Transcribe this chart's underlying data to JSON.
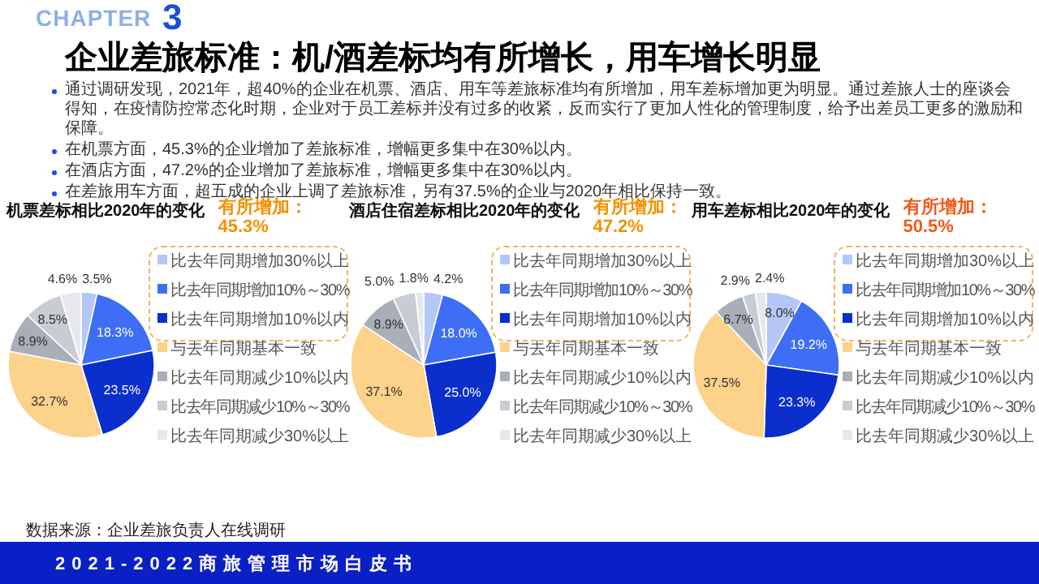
{
  "chart_data": [
    {
      "type": "other",
      "title": "企业差旅标准：机/酒差标均有所增长，用车增长明显",
      "annotations": [
        "CHAPTER",
        "3",
        "通过调研发现，2021年，超40%的企业在机票、酒店、用车等差旅标准均有所增加，用车差标增加更为明显。通过差旅人士的座谈会得知，在疫情防控常态化时期，企业对于员工差标并没有过多的收紧，反而实行了更加人性化的管理制度，给予出差员工更多的激励和保障。",
        "在机票方面，45.3%的企业增加了差旅标准，增幅更多集中在30%以内。",
        "在酒店方面，47.2%的企业增加了差旅标准，增幅更多集中在30%以内。",
        "在差旅用车方面，超五成的企业上调了差旅标准，另有37.5%的企业与2020年相比保持一致。",
        "数据来源：企业差旅负责人在线调研",
        "2021-2022商旅管理市场白皮书"
      ]
    },
    {
      "type": "pie",
      "title": "机票差标相比2020年的变化",
      "annotations": [
        "有所增加：",
        "45.3%"
      ],
      "categories": [
        "比去年同期增加30%以上",
        "比去年同期增加10%～30%",
        "比去年同期增加10%以内",
        "与去年同期基本一致",
        "比去年同期减少10%以内",
        "比去年同期减少10%～30%",
        "比去年同期减少30%以上"
      ],
      "values": [
        3.5,
        18.3,
        23.5,
        32.7,
        8.9,
        8.5,
        4.6
      ],
      "value_labels": [
        "3.5%",
        "18.3%",
        "23.5%",
        "32.7%",
        "8.9%",
        "8.5%",
        "4.6%"
      ],
      "colors": [
        "#b4c7f7",
        "#3d6ef5",
        "#0a2fcc",
        "#fdd28a",
        "#a9afb8",
        "#c8ccd3",
        "#e6e8ec"
      ],
      "legend": "right"
    },
    {
      "type": "pie",
      "title": "酒店住宿差标相比2020年的变化",
      "annotations": [
        "有所增加：",
        "47.2%"
      ],
      "categories": [
        "比去年同期增加30%以上",
        "比去年同期增加10%～30%",
        "比去年同期增加10%以内",
        "与去年同期基本一致",
        "比去年同期减少10%以内",
        "比去年同期减少10%～30%",
        "比去年同期减少30%以上"
      ],
      "values": [
        4.2,
        18.0,
        25.0,
        37.1,
        8.9,
        5.0,
        1.8
      ],
      "value_labels": [
        "4.2%",
        "18.0%",
        "25.0%",
        "37.1%",
        "8.9%",
        "5.0%",
        "1.8%"
      ],
      "colors": [
        "#b4c7f7",
        "#3d6ef5",
        "#0a2fcc",
        "#fdd28a",
        "#a9afb8",
        "#c8ccd3",
        "#e6e8ec"
      ],
      "legend": "right"
    },
    {
      "type": "pie",
      "title": "用车差标相比2020年的变化",
      "annotations": [
        "有所增加：",
        "50.5%"
      ],
      "categories": [
        "比去年同期增加30%以上",
        "比去年同期增加10%～30%",
        "比去年同期增加10%以内",
        "与去年同期基本一致",
        "比去年同期减少10%以内",
        "比去年同期减少10%～30%",
        "比去年同期减少30%以上"
      ],
      "values": [
        8.0,
        19.2,
        23.3,
        37.5,
        6.7,
        2.9,
        2.4
      ],
      "value_labels": [
        "8.0%",
        "19.2%",
        "23.3%",
        "37.5%",
        "6.7%",
        "2.9%",
        "2.4%"
      ],
      "colors": [
        "#b4c7f7",
        "#3d6ef5",
        "#0a2fcc",
        "#fdd28a",
        "#a9afb8",
        "#c8ccd3",
        "#e6e8ec"
      ],
      "legend": "right"
    }
  ]
}
